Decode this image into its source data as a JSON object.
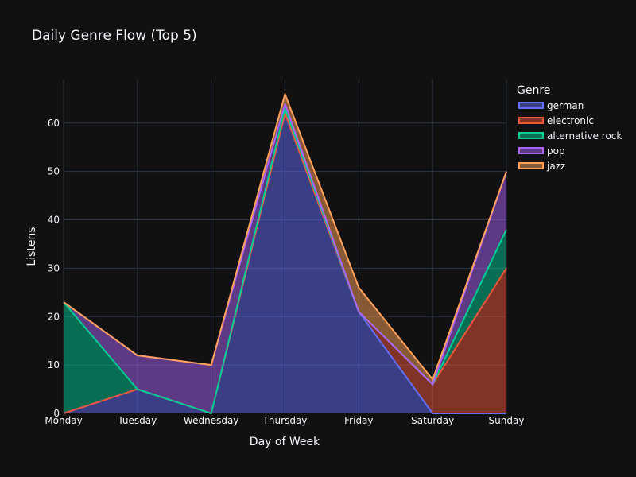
{
  "chart_data": {
    "type": "area",
    "title": "Daily Genre Flow (Top 5)",
    "xlabel": "Day of Week",
    "ylabel": "Listens",
    "categories": [
      "Monday",
      "Tuesday",
      "Wednesday",
      "Thursday",
      "Friday",
      "Saturday",
      "Sunday"
    ],
    "ylim": [
      0,
      69
    ],
    "yticks": [
      0,
      10,
      20,
      30,
      40,
      50,
      60
    ],
    "stacked": true,
    "grid": true,
    "legend": {
      "title": "Genre",
      "placement": "right"
    },
    "series": [
      {
        "name": "german",
        "values": [
          0,
          5,
          0,
          62,
          21,
          0,
          0
        ],
        "color": "#636efa"
      },
      {
        "name": "electronic",
        "values": [
          0,
          0,
          0,
          0,
          0,
          6,
          30
        ],
        "color": "#ef553b"
      },
      {
        "name": "alternative rock",
        "values": [
          23,
          0,
          0,
          1,
          0,
          0,
          8
        ],
        "color": "#00cc96"
      },
      {
        "name": "pop",
        "values": [
          0,
          7,
          10,
          1,
          0,
          0,
          12
        ],
        "color": "#ab63fa"
      },
      {
        "name": "jazz",
        "values": [
          0,
          0,
          0,
          2,
          5,
          1,
          0
        ],
        "color": "#ffa15a"
      }
    ]
  }
}
